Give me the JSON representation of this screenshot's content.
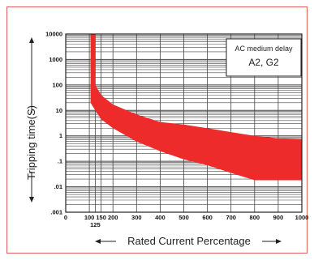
{
  "chart_data": {
    "type": "area",
    "xlabel": "Rated Current Percentage",
    "ylabel": "Tripping time(S)",
    "xlim": [
      0,
      1000
    ],
    "ylim": [
      0.001,
      10000
    ],
    "y_scale": "log",
    "x_ticks": [
      {
        "value": 0,
        "label": "0"
      },
      {
        "value": 100,
        "label": "100"
      },
      {
        "value": 150,
        "label": "150"
      },
      {
        "value": 200,
        "label": "200"
      },
      {
        "value": 300,
        "label": "300"
      },
      {
        "value": 400,
        "label": "400"
      },
      {
        "value": 500,
        "label": "500"
      },
      {
        "value": 600,
        "label": "600"
      },
      {
        "value": 700,
        "label": "700"
      },
      {
        "value": 800,
        "label": "800"
      },
      {
        "value": 900,
        "label": "900"
      },
      {
        "value": 1000,
        "label": "1000"
      }
    ],
    "x_extra_tick": {
      "value": 125,
      "label": "125"
    },
    "y_ticks": [
      {
        "value": 10000,
        "label": "10000"
      },
      {
        "value": 1000,
        "label": "1000"
      },
      {
        "value": 100,
        "label": "100"
      },
      {
        "value": 10,
        "label": "10"
      },
      {
        "value": 1,
        "label": "1"
      },
      {
        "value": 0.1,
        "label": ".1"
      },
      {
        "value": 0.01,
        "label": ".01"
      },
      {
        "value": 0.001,
        "label": ".001"
      }
    ],
    "band": {
      "color": "#ee2b2b",
      "upper": [
        [
          105,
          10000
        ],
        [
          125,
          10000
        ],
        [
          125,
          100
        ],
        [
          150,
          40
        ],
        [
          200,
          17
        ],
        [
          300,
          7
        ],
        [
          400,
          3.5
        ],
        [
          500,
          2.8
        ],
        [
          600,
          2
        ],
        [
          700,
          1.4
        ],
        [
          800,
          1
        ],
        [
          900,
          0.8
        ],
        [
          1000,
          0.75
        ]
      ],
      "lower": [
        [
          105,
          20
        ],
        [
          125,
          10
        ],
        [
          150,
          4.5
        ],
        [
          200,
          2
        ],
        [
          300,
          0.6
        ],
        [
          400,
          0.25
        ],
        [
          500,
          0.12
        ],
        [
          600,
          0.07
        ],
        [
          700,
          0.035
        ],
        [
          800,
          0.018
        ],
        [
          900,
          0.018
        ],
        [
          1000,
          0.018
        ]
      ]
    },
    "grid": true,
    "legend": {
      "position": "top-right",
      "title": "AC medium delay",
      "subtitle": "A2, G2"
    }
  }
}
